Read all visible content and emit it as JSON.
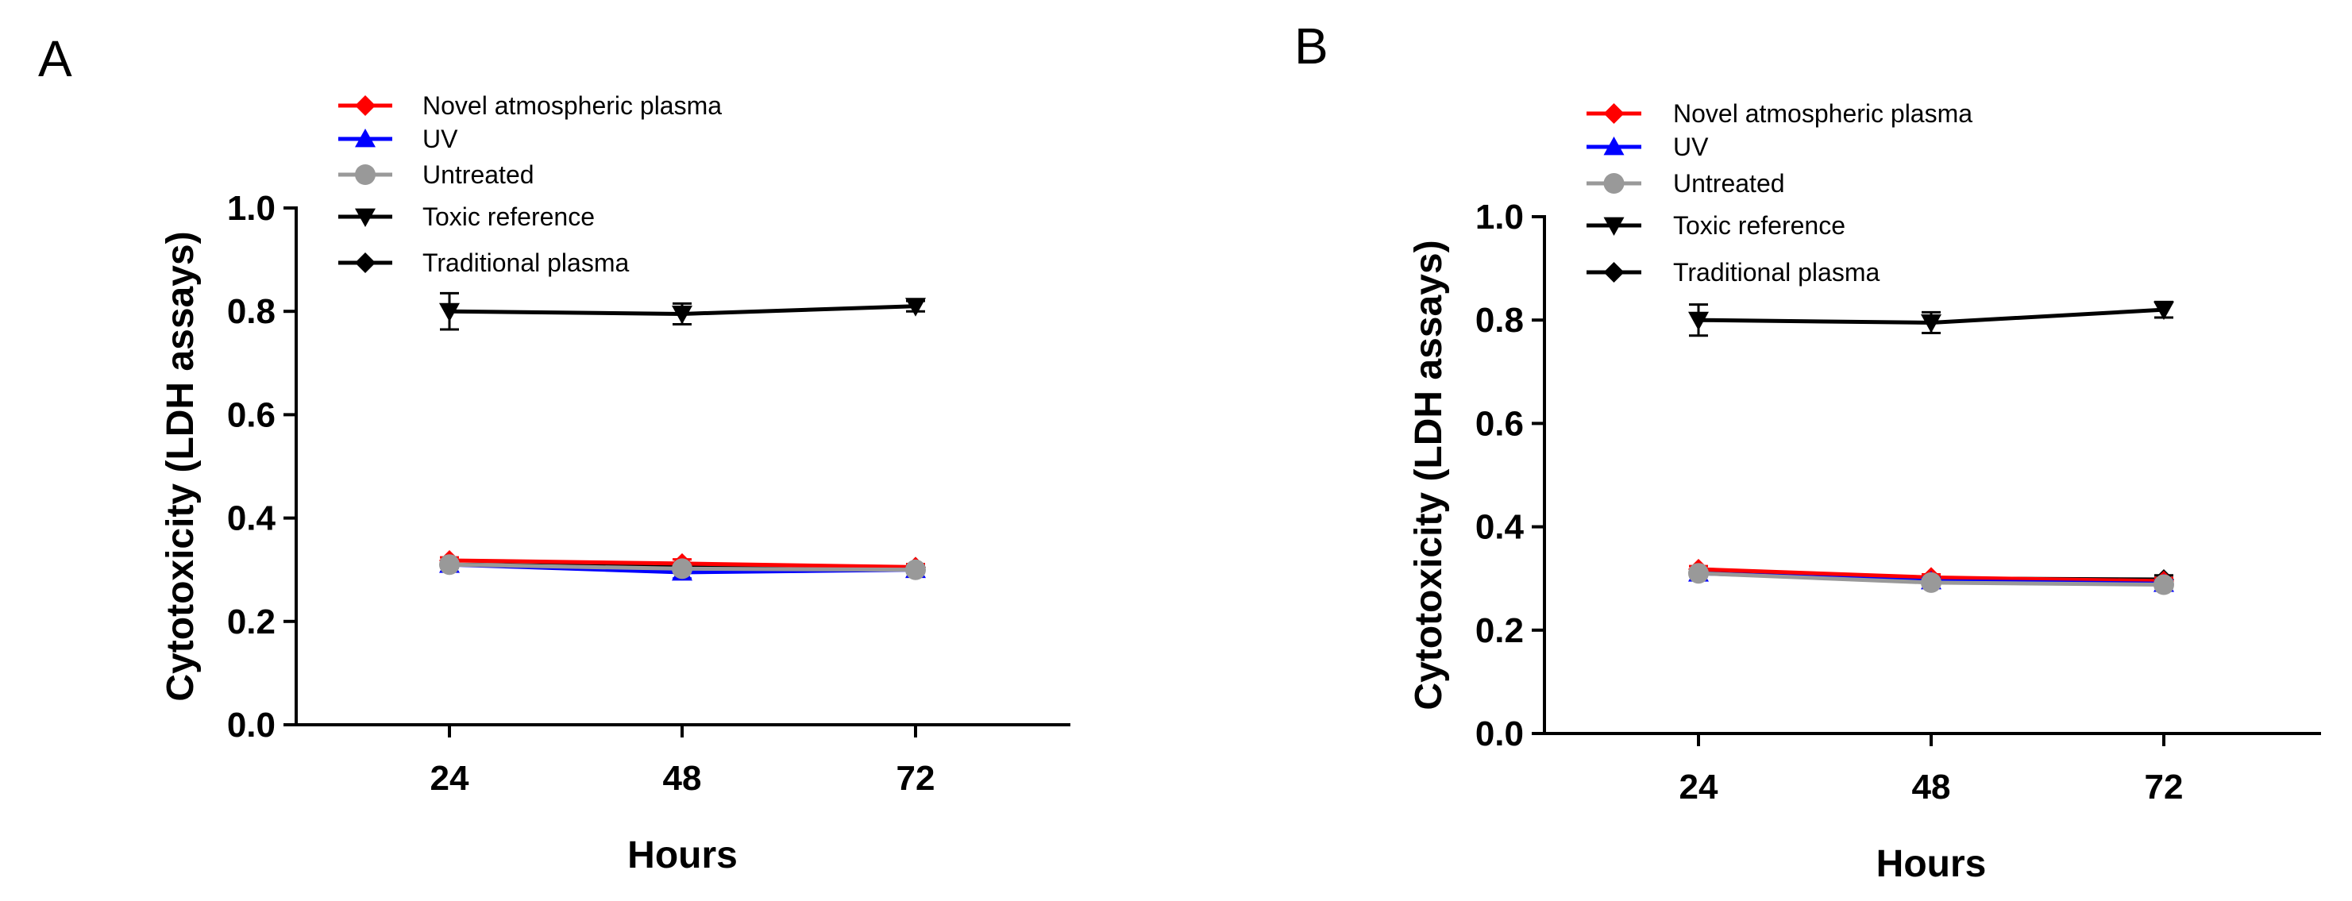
{
  "figure": {
    "panels": [
      "A",
      "B"
    ]
  },
  "legend": [
    {
      "name": "Novel atmospheric plasma",
      "color": "#ff0000",
      "marker": "diamond"
    },
    {
      "name": "UV",
      "color": "#0000ff",
      "marker": "triangle-up"
    },
    {
      "name": "Untreated",
      "color": "#999999",
      "marker": "circle"
    },
    {
      "name": "Toxic reference",
      "color": "#000000",
      "marker": "triangle-down"
    },
    {
      "name": "Traditional plasma",
      "color": "#000000",
      "marker": "diamond"
    }
  ],
  "chart_data": [
    {
      "panel": "A",
      "type": "line",
      "x": [
        24,
        48,
        72
      ],
      "x_tick_labels": [
        "24",
        "48",
        "72"
      ],
      "y_ticks": [
        0.0,
        0.2,
        0.4,
        0.6,
        0.8,
        1.0
      ],
      "y_tick_labels": [
        "0.0",
        "0.2",
        "0.4",
        "0.6",
        "0.8",
        "1.0"
      ],
      "xlabel": "Hours",
      "ylabel": "Cytotoxicity (LDH assays)",
      "ylim": [
        0,
        1.0
      ],
      "legend_position": "top-left",
      "series": [
        {
          "name": "Traditional plasma",
          "values": [
            0.31,
            0.305,
            0.305
          ],
          "errors": [
            0.005,
            0.005,
            0.005
          ]
        },
        {
          "name": "Novel atmospheric plasma",
          "values": [
            0.318,
            0.312,
            0.305
          ],
          "errors": [
            0.006,
            0.008,
            0.006
          ]
        },
        {
          "name": "UV",
          "values": [
            0.31,
            0.295,
            0.3
          ],
          "errors": [
            0.006,
            0.012,
            0.006
          ]
        },
        {
          "name": "Untreated",
          "values": [
            0.31,
            0.302,
            0.3
          ],
          "errors": [
            0.005,
            0.005,
            0.005
          ]
        },
        {
          "name": "Toxic reference",
          "values": [
            0.8,
            0.795,
            0.81
          ],
          "errors": [
            0.035,
            0.02,
            0.01
          ]
        }
      ]
    },
    {
      "panel": "B",
      "type": "line",
      "x": [
        24,
        48,
        72
      ],
      "x_tick_labels": [
        "24",
        "48",
        "72"
      ],
      "y_ticks": [
        0.0,
        0.2,
        0.4,
        0.6,
        0.8,
        1.0
      ],
      "y_tick_labels": [
        "0.0",
        "0.2",
        "0.4",
        "0.6",
        "0.8",
        "1.0"
      ],
      "xlabel": "Hours",
      "ylabel": "Cytotoxicity (LDH assays)",
      "ylim": [
        0,
        1.0
      ],
      "legend_position": "top-left",
      "series": [
        {
          "name": "Traditional plasma",
          "values": [
            0.312,
            0.3,
            0.298
          ],
          "errors": [
            0.005,
            0.005,
            0.008
          ]
        },
        {
          "name": "Novel atmospheric plasma",
          "values": [
            0.318,
            0.302,
            0.295
          ],
          "errors": [
            0.006,
            0.006,
            0.006
          ]
        },
        {
          "name": "UV",
          "values": [
            0.31,
            0.295,
            0.29
          ],
          "errors": [
            0.006,
            0.006,
            0.006
          ]
        },
        {
          "name": "Untreated",
          "values": [
            0.31,
            0.292,
            0.288
          ],
          "errors": [
            0.005,
            0.005,
            0.005
          ]
        },
        {
          "name": "Toxic reference",
          "values": [
            0.8,
            0.795,
            0.82
          ],
          "errors": [
            0.03,
            0.02,
            0.015
          ]
        }
      ]
    }
  ]
}
